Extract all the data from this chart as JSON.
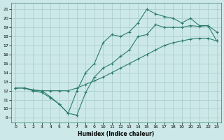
{
  "title": "",
  "xlabel": "Humidex (Indice chaleur)",
  "bg_color": "#cce8e8",
  "line_color": "#2e7d6e",
  "xlim": [
    -0.5,
    23.5
  ],
  "ylim": [
    8.5,
    21.7
  ],
  "yticks": [
    9,
    10,
    11,
    12,
    13,
    14,
    15,
    16,
    17,
    18,
    19,
    20,
    21
  ],
  "xticks": [
    0,
    1,
    2,
    3,
    4,
    5,
    6,
    7,
    8,
    9,
    10,
    11,
    12,
    13,
    14,
    15,
    16,
    17,
    18,
    19,
    20,
    21,
    22,
    23
  ],
  "line1_x": [
    0,
    1,
    2,
    3,
    4,
    5,
    6,
    7,
    8,
    9,
    10,
    11,
    12,
    13,
    14,
    15,
    16,
    17,
    18,
    19,
    20,
    21,
    22,
    23
  ],
  "line1_y": [
    12.3,
    12.3,
    12.0,
    11.8,
    11.2,
    10.5,
    9.5,
    9.3,
    11.8,
    13.5,
    14.5,
    15.0,
    15.8,
    16.5,
    18.0,
    18.2,
    19.3,
    19.0,
    19.0,
    19.0,
    19.2,
    19.1,
    19.2,
    17.5
  ],
  "line2_x": [
    0,
    1,
    2,
    3,
    4,
    5,
    6,
    7,
    8,
    9,
    10,
    11,
    12,
    13,
    14,
    15,
    16,
    17,
    18,
    19,
    20,
    21,
    22,
    23
  ],
  "line2_y": [
    12.3,
    12.3,
    12.1,
    12.0,
    12.0,
    12.0,
    12.0,
    12.3,
    12.7,
    13.1,
    13.5,
    14.0,
    14.5,
    15.0,
    15.5,
    16.0,
    16.5,
    17.0,
    17.3,
    17.5,
    17.7,
    17.8,
    17.8,
    17.5
  ],
  "line3_x": [
    0,
    1,
    2,
    3,
    4,
    5,
    6,
    7,
    8,
    9,
    10,
    11,
    12,
    13,
    14,
    15,
    16,
    17,
    18,
    19,
    20,
    21,
    22,
    23
  ],
  "line3_y": [
    12.3,
    12.3,
    12.0,
    12.0,
    11.3,
    10.5,
    9.5,
    12.0,
    14.0,
    15.0,
    17.3,
    18.2,
    18.0,
    18.5,
    19.5,
    21.0,
    20.5,
    20.2,
    20.0,
    19.5,
    20.0,
    19.2,
    19.2,
    18.5
  ]
}
